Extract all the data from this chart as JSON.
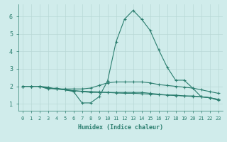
{
  "xlabel": "Humidex (Indice chaleur)",
  "x_values": [
    0,
    1,
    2,
    3,
    4,
    5,
    6,
    7,
    8,
    9,
    10,
    11,
    12,
    13,
    14,
    15,
    16,
    17,
    18,
    19,
    20,
    21,
    22,
    23
  ],
  "line1": [
    2.0,
    2.0,
    2.0,
    1.85,
    1.9,
    1.8,
    1.7,
    1.05,
    1.05,
    1.4,
    2.3,
    4.55,
    5.85,
    6.35,
    5.85,
    5.2,
    4.1,
    3.1,
    2.35,
    2.35,
    1.9,
    1.4,
    1.35,
    1.2
  ],
  "line2": [
    2.0,
    2.0,
    2.0,
    1.9,
    1.85,
    1.85,
    1.85,
    1.85,
    1.9,
    2.05,
    2.2,
    2.25,
    2.25,
    2.25,
    2.25,
    2.2,
    2.1,
    2.05,
    2.0,
    1.95,
    1.9,
    1.8,
    1.7,
    1.6
  ],
  "line3": [
    2.0,
    2.0,
    2.0,
    1.95,
    1.85,
    1.8,
    1.75,
    1.7,
    1.65,
    1.65,
    1.65,
    1.65,
    1.65,
    1.65,
    1.65,
    1.6,
    1.55,
    1.5,
    1.5,
    1.45,
    1.45,
    1.4,
    1.35,
    1.25
  ],
  "line4": [
    2.0,
    2.0,
    2.0,
    1.9,
    1.85,
    1.8,
    1.75,
    1.72,
    1.7,
    1.68,
    1.65,
    1.62,
    1.6,
    1.6,
    1.58,
    1.55,
    1.52,
    1.5,
    1.47,
    1.45,
    1.42,
    1.4,
    1.35,
    1.25
  ],
  "line_color": "#2a7d6e",
  "bg_color": "#d0eceb",
  "grid_color": "#b8d8d6",
  "ylim": [
    0.6,
    6.7
  ],
  "xlim": [
    -0.5,
    23.5
  ],
  "yticks": [
    1,
    2,
    3,
    4,
    5,
    6
  ],
  "xticks": [
    0,
    1,
    2,
    3,
    4,
    5,
    6,
    7,
    8,
    9,
    10,
    11,
    12,
    13,
    14,
    15,
    16,
    17,
    18,
    19,
    20,
    21,
    22,
    23
  ]
}
